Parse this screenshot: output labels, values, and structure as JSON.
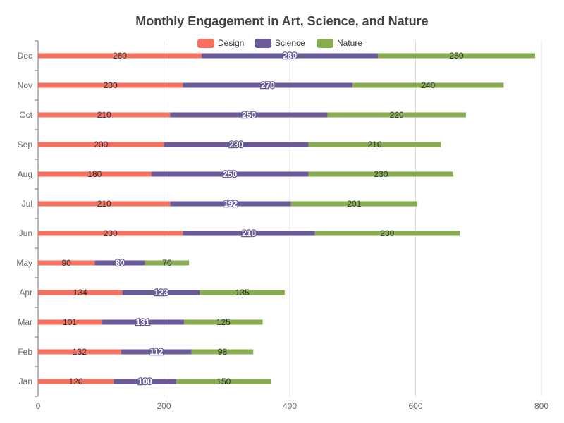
{
  "chart_data": {
    "type": "bar",
    "orientation": "horizontal",
    "stacked": true,
    "title": "Monthly Engagement in Art, Science, and Nature",
    "categories": [
      "Jan",
      "Feb",
      "Mar",
      "Apr",
      "May",
      "Jun",
      "Jul",
      "Aug",
      "Sep",
      "Oct",
      "Nov",
      "Dec"
    ],
    "series": [
      {
        "name": "Design",
        "color": "#f87060",
        "values": [
          120,
          132,
          101,
          134,
          90,
          230,
          210,
          180,
          200,
          210,
          230,
          260
        ]
      },
      {
        "name": "Science",
        "color": "#6a5a98",
        "values": [
          100,
          112,
          131,
          123,
          80,
          210,
          192,
          250,
          230,
          250,
          270,
          280
        ]
      },
      {
        "name": "Nature",
        "color": "#87ad4e",
        "values": [
          150,
          98,
          125,
          135,
          70,
          230,
          201,
          230,
          210,
          220,
          240,
          250
        ]
      }
    ],
    "xlim": [
      0,
      800
    ],
    "x_ticks": [
      0,
      200,
      400,
      600,
      800
    ],
    "grid": true,
    "legend_position": "top-center"
  }
}
